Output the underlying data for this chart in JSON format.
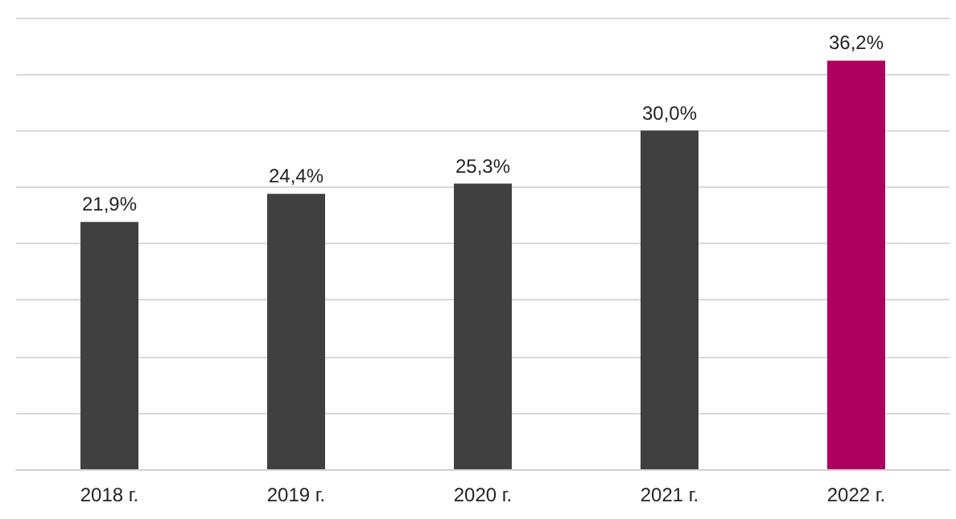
{
  "chart_data": {
    "type": "bar",
    "categories": [
      "2018 г.",
      "2019 г.",
      "2020 г.",
      "2021 г.",
      "2022 г."
    ],
    "values": [
      21.9,
      24.4,
      25.3,
      30.0,
      36.2
    ],
    "value_labels": [
      "21,9%",
      "24,4%",
      "25,3%",
      "30,0%",
      "36,2%"
    ],
    "colors": [
      "#404040",
      "#404040",
      "#404040",
      "#404040",
      "#b0005f"
    ],
    "ylim": [
      0,
      40
    ],
    "yticks": [
      {
        "value": 0,
        "label": null
      },
      {
        "value": 5,
        "label": null
      },
      {
        "value": 10,
        "label": null
      },
      {
        "value": 15,
        "label": null
      },
      {
        "value": 20,
        "label": null
      },
      {
        "value": 25,
        "label": null
      },
      {
        "value": 30,
        "label": null
      },
      {
        "value": 35,
        "label": null
      },
      {
        "value": 40,
        "label": null
      }
    ],
    "grid": "y",
    "tick_labels": "x"
  }
}
